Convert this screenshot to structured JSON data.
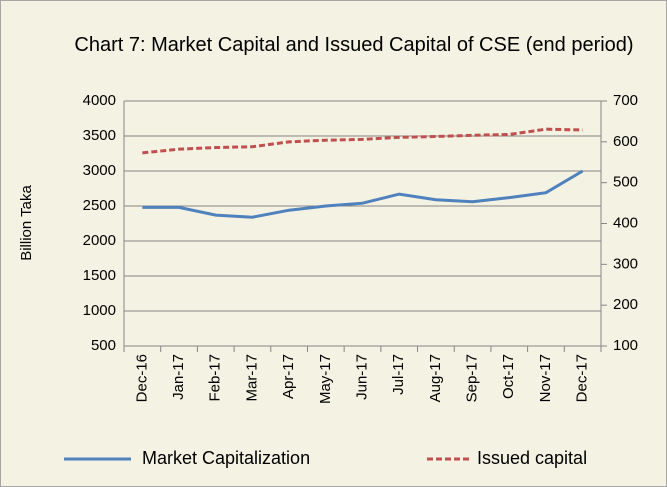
{
  "chart_data": {
    "type": "line",
    "title": "Chart 7: Market Capital and Issued Capital of CSE (end period)",
    "y_label": "Billion Taka",
    "categories": [
      "Dec-16",
      "Jan-17",
      "Feb-17",
      "Mar-17",
      "Apr-17",
      "May-17",
      "Jun-17",
      "Jul-17",
      "Aug-17",
      "Sep-17",
      "Oct-17",
      "Nov-17",
      "Dec-17"
    ],
    "series": [
      {
        "name": "Market Capitalization",
        "color": "#4f81bd",
        "values": [
          2480,
          2480,
          2370,
          2340,
          2440,
          2500,
          2540,
          2670,
          2590,
          2560,
          2620,
          2690,
          3000
        ]
      },
      {
        "name": "Issued capital",
        "color": "#c0504d",
        "dashed": true,
        "axis": "y2",
        "values": [
          573,
          582,
          586,
          588,
          600,
          604,
          606,
          611,
          613,
          616,
          618,
          631,
          629
        ]
      }
    ],
    "ylim": [
      500,
      4000
    ],
    "yticks": [
      500,
      1000,
      1500,
      2000,
      2500,
      3000,
      3500,
      4000
    ],
    "y2lim": [
      100,
      700
    ],
    "y2ticks": [
      100,
      200,
      300,
      400,
      500,
      600,
      700
    ],
    "grid": true,
    "legend": "bottom"
  }
}
